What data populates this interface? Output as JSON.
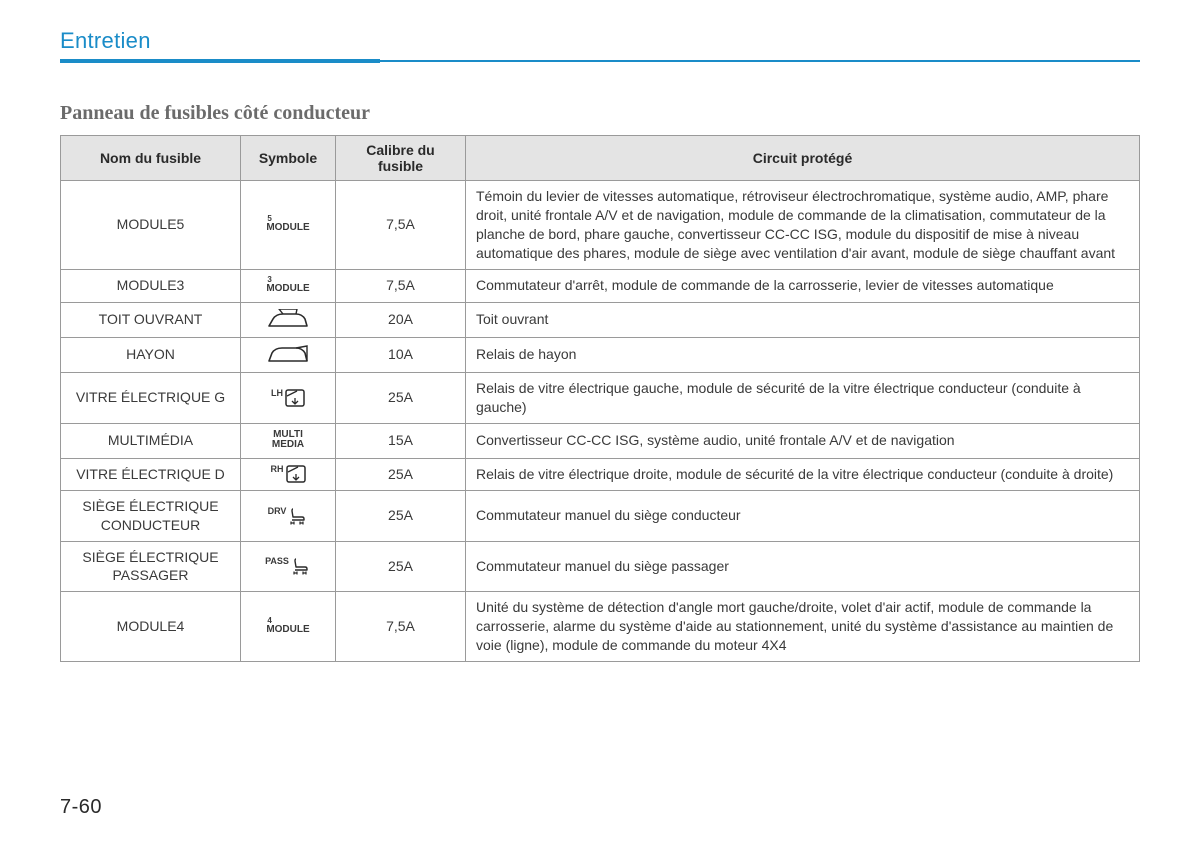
{
  "header": {
    "section": "Entretien",
    "subtitle": "Panneau de fusibles côté conducteur"
  },
  "table": {
    "columns": [
      "Nom du fusible",
      "Symbole",
      "Calibre du fusible",
      "Circuit protégé"
    ],
    "rows": [
      {
        "name": "MODULE5",
        "symbol_type": "module_label",
        "symbol_sup": "5",
        "symbol_text": "MODULE",
        "rating": "7,5A",
        "circuit": "Témoin du levier de vitesses automatique, rétroviseur électrochromatique, système audio, AMP, phare droit, unité frontale A/V et de navigation, module de commande de la climatisation, commutateur de la planche de bord, phare gauche, convertisseur CC-CC ISG, module du dispositif de mise à niveau automatique des phares, module de siège avec ventilation d'air avant, module de siège chauffant avant"
      },
      {
        "name": "MODULE3",
        "symbol_type": "module_label",
        "symbol_sup": "3",
        "symbol_text": "MODULE",
        "rating": "7,5A",
        "circuit": "Commutateur d'arrêt, module de commande de la carrosserie, levier de vitesses automatique"
      },
      {
        "name": "TOIT OUVRANT",
        "symbol_type": "sunroof",
        "rating": "20A",
        "circuit": "Toit ouvrant"
      },
      {
        "name": "HAYON",
        "symbol_type": "tailgate",
        "rating": "10A",
        "circuit": "Relais de hayon"
      },
      {
        "name": "VITRE ÉLECTRIQUE G",
        "symbol_type": "window",
        "symbol_sup": "LH",
        "rating": "25A",
        "circuit": "Relais de vitre électrique gauche, module de sécurité de la vitre électrique conducteur (conduite à gauche)"
      },
      {
        "name": "MULTIMÉDIA",
        "symbol_type": "multi_label",
        "symbol_line1": "MULTI",
        "symbol_line2": "MEDIA",
        "rating": "15A",
        "circuit": "Convertisseur CC-CC ISG, système audio, unité frontale A/V et de navigation"
      },
      {
        "name": "VITRE ÉLECTRIQUE D",
        "symbol_type": "window",
        "symbol_sup": "RH",
        "rating": "25A",
        "circuit": "Relais de vitre électrique droite, module de sécurité de la vitre électrique conducteur (conduite à droite)"
      },
      {
        "name": "SIÈGE ÉLECTRIQUE CONDUCTEUR",
        "symbol_type": "seat",
        "symbol_sup": "DRV",
        "rating": "25A",
        "circuit": "Commutateur manuel du siège conducteur"
      },
      {
        "name": "SIÈGE ÉLECTRIQUE PASSAGER",
        "symbol_type": "seat",
        "symbol_sup": "PASS",
        "rating": "25A",
        "circuit": "Commutateur manuel du siège passager"
      },
      {
        "name": "MODULE4",
        "symbol_type": "module_label",
        "symbol_sup": "4",
        "symbol_text": "MODULE",
        "rating": "7,5A",
        "circuit": "Unité du système de détection d'angle mort gauche/droite, volet d'air actif, module de commande la carrosserie, alarme du système d'aide au stationnement, unité du système d'assistance au maintien de voie (ligne), module de commande du moteur 4X4"
      }
    ]
  },
  "page_number": "7-60",
  "colors": {
    "accent": "#1a8cc8",
    "header_bg": "#e4e4e4",
    "border": "#9a9a9a",
    "text": "#3a3a3a"
  }
}
